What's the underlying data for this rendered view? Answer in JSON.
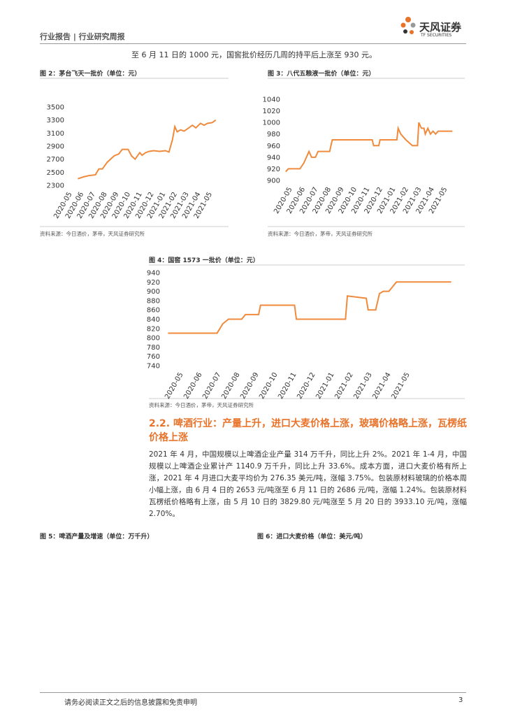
{
  "header": {
    "left": "行业报告 | 行业研究周报",
    "logo": "天风证券",
    "logo_sub": "TF SECURITIES"
  },
  "intro": "至 6 月 11 日的 1000 元，国窖批价经历几周的持平后上涨至 930 元。",
  "chart_data": [
    {
      "type": "line",
      "title": "图 2：茅台飞天一批价（单位：元）",
      "source": "资料来源：今日酒价，茅帝，天风证券研究所",
      "xlim": [
        -0.3,
        12.8
      ],
      "ylim": [
        2300,
        3500
      ],
      "yticks": [
        2300,
        2500,
        2700,
        2900,
        3100,
        3300,
        3500
      ],
      "xticks": [
        {
          "value": 0,
          "label": "2020-05"
        },
        {
          "value": 1,
          "label": "2020-06"
        },
        {
          "value": 2,
          "label": "2020-07"
        },
        {
          "value": 3,
          "label": "2020-08"
        },
        {
          "value": 4,
          "label": "2020-09"
        },
        {
          "value": 5,
          "label": "2020-10"
        },
        {
          "value": 6,
          "label": "2020-11"
        },
        {
          "value": 7,
          "label": "2020-12"
        },
        {
          "value": 8,
          "label": "2021-01"
        },
        {
          "value": 9,
          "label": "2021-02"
        },
        {
          "value": 10,
          "label": "2021-03"
        },
        {
          "value": 11,
          "label": "2021-04"
        },
        {
          "value": 12,
          "label": "2021-05"
        }
      ],
      "series": [
        {
          "color": "#f08a3c",
          "x": [
            0.5,
            1,
            1.5,
            2,
            2.3,
            2.6,
            3,
            3.3,
            3.6,
            4,
            4.3,
            4.8,
            5.1,
            5.4,
            5.8,
            6,
            6.3,
            6.6,
            7,
            7.5,
            8,
            8.3,
            8.6,
            8.8,
            9,
            9.3,
            9.6,
            10,
            10.3,
            10.6,
            11,
            11.3,
            11.6,
            12,
            12.3
          ],
          "values": [
            2400,
            2430,
            2450,
            2460,
            2550,
            2550,
            2650,
            2700,
            2750,
            2780,
            2850,
            2850,
            2750,
            2700,
            2800,
            2760,
            2800,
            2820,
            2830,
            2820,
            2830,
            2810,
            3000,
            3200,
            3120,
            3150,
            3130,
            3180,
            3220,
            3180,
            3250,
            3220,
            3250,
            3260,
            3300
          ]
        }
      ]
    },
    {
      "type": "line",
      "title": "图 3：八代五粮液一批价（单位：元）",
      "source": "资料来源：今日酒价，茅帝，天风证券研究所",
      "xlim": [
        -0.6,
        12.6
      ],
      "ylim": [
        900,
        1040
      ],
      "yticks": [
        900,
        920,
        940,
        960,
        980,
        1000,
        1020,
        1040
      ],
      "xticks": [
        {
          "value": 0,
          "label": "2020-05"
        },
        {
          "value": 1,
          "label": "2020-06"
        },
        {
          "value": 2,
          "label": "2020-07"
        },
        {
          "value": 3,
          "label": "2020-08"
        },
        {
          "value": 4,
          "label": "2020-09"
        },
        {
          "value": 5,
          "label": "2020-10"
        },
        {
          "value": 6,
          "label": "2020-11"
        },
        {
          "value": 7,
          "label": "2020-12"
        },
        {
          "value": 8,
          "label": "2021-01"
        },
        {
          "value": 9,
          "label": "2021-02"
        },
        {
          "value": 10,
          "label": "2021-03"
        },
        {
          "value": 11,
          "label": "2021-04"
        },
        {
          "value": 12,
          "label": "2021-05"
        }
      ],
      "series": [
        {
          "color": "#f08a3c",
          "x": [
            -0.5,
            -0.3,
            0.6,
            0.9,
            1.3,
            1.5,
            1.8,
            2,
            2.9,
            3.1,
            6.2,
            6.3,
            6.7,
            6.8,
            8.1,
            8.2,
            8.4,
            8.8,
            9.3,
            9.7,
            9.8,
            10,
            10.2,
            10.3,
            10.5,
            10.7,
            10.9,
            11.1,
            11.3,
            12.4
          ],
          "values": [
            915,
            920,
            920,
            930,
            950,
            940,
            940,
            950,
            950,
            970,
            970,
            960,
            960,
            970,
            970,
            990,
            980,
            970,
            960,
            960,
            1000,
            990,
            990,
            980,
            990,
            980,
            985,
            980,
            985,
            985
          ]
        }
      ]
    },
    {
      "type": "line",
      "title": "图 4：国窖 1573 一批价（单位：元）",
      "source": "资料来源：今日酒价，茅帝，天风证券研究所",
      "xlim": [
        -1,
        14.4
      ],
      "ylim": [
        740,
        940
      ],
      "yticks": [
        740,
        760,
        780,
        800,
        820,
        840,
        860,
        880,
        900,
        920,
        940
      ],
      "xticks": [
        {
          "value": 0,
          "label": "2020-05"
        },
        {
          "value": 1,
          "label": "2020-06"
        },
        {
          "value": 2,
          "label": "2020-07"
        },
        {
          "value": 3,
          "label": "2020-08"
        },
        {
          "value": 4,
          "label": "2020-09"
        },
        {
          "value": 5,
          "label": "2020-10"
        },
        {
          "value": 6,
          "label": "2020-11"
        },
        {
          "value": 7,
          "label": "2020-12"
        },
        {
          "value": 8,
          "label": "2021-01"
        },
        {
          "value": 9,
          "label": "2021-02"
        },
        {
          "value": 10,
          "label": "2021-03"
        },
        {
          "value": 11,
          "label": "2021-04"
        },
        {
          "value": 12,
          "label": "2021-05"
        }
      ],
      "series": [
        {
          "color": "#f08a3c",
          "x": [
            -0.8,
            1.8,
            2.1,
            2.4,
            3.1,
            3.3,
            4,
            4.1,
            5.9,
            6,
            8.6,
            8.7,
            9.7,
            9.8,
            10.2,
            10.4,
            10.6,
            10.9,
            11.3,
            14.2
          ],
          "values": [
            810,
            810,
            830,
            840,
            840,
            850,
            850,
            870,
            870,
            840,
            840,
            890,
            885,
            860,
            860,
            895,
            900,
            900,
            920,
            920
          ]
        }
      ]
    }
  ],
  "section": {
    "heading": "2.2. 啤酒行业：产量上升，进口大麦价格上涨，玻璃价格略上涨，瓦楞纸价格上涨",
    "paragraph": "2021 年 4 月，中国规模以上啤酒企业产量 314 万千升，同比上升 2%。2021 年 1-4 月，中国规模以上啤酒企业累计产 1140.9 万千升，同比上升 33.6%。成本方面，进口大麦价格有所上涨，2021 年 4 月进口大麦平均价为 276.35 美元/吨，涨幅 3.75%。包装原材料玻璃的价格本周小幅上涨，由 6 月 4 日的 2653 元/吨涨至 6 月 11 日的 2686 元/吨，涨幅 1.24%。包装原材料瓦楞纸价格略有上涨，由 5 月 10 日的 3829.80 元/吨涨至 5 月 20 日的 3933.10 元/吨，涨幅 2.70%。"
  },
  "captions": [
    "图 5：啤酒产量及增速（单位：万千升）",
    "图 6：进口大麦价格（单位：美元/吨）"
  ],
  "footer": {
    "text": "请务必阅读正文之后的信息披露和免责申明",
    "page": "3"
  }
}
